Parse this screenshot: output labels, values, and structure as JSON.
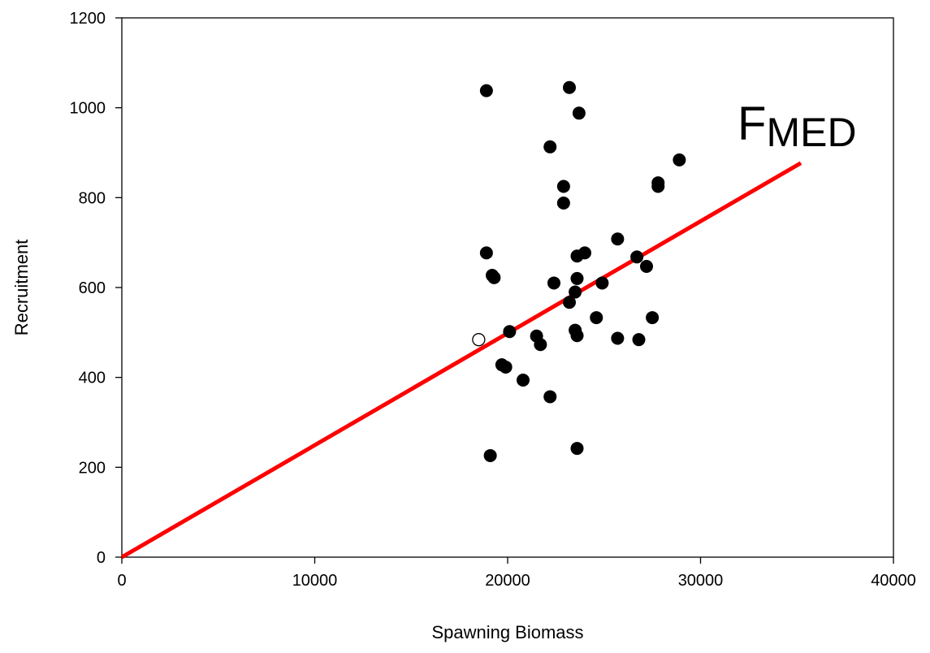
{
  "chart_data": {
    "type": "scatter",
    "xlabel": "Spawning Biomass",
    "ylabel": "Recruitment",
    "xlim": [
      0,
      40000
    ],
    "ylim": [
      0,
      1200
    ],
    "xticks": [
      0,
      10000,
      20000,
      30000,
      40000
    ],
    "yticks": [
      0,
      200,
      400,
      600,
      800,
      1000,
      1200
    ],
    "grid": false,
    "points_filled": [
      [
        18900,
        1038
      ],
      [
        23200,
        1045
      ],
      [
        23700,
        988
      ],
      [
        22200,
        913
      ],
      [
        28900,
        884
      ],
      [
        27800,
        833
      ],
      [
        27800,
        825
      ],
      [
        22900,
        825
      ],
      [
        22900,
        788
      ],
      [
        25700,
        708
      ],
      [
        18900,
        677
      ],
      [
        24000,
        677
      ],
      [
        23600,
        670
      ],
      [
        26700,
        668
      ],
      [
        27200,
        647
      ],
      [
        19200,
        627
      ],
      [
        19300,
        622
      ],
      [
        23600,
        620
      ],
      [
        22400,
        610
      ],
      [
        24900,
        610
      ],
      [
        23500,
        590
      ],
      [
        23200,
        567
      ],
      [
        24600,
        533
      ],
      [
        27500,
        533
      ],
      [
        23500,
        505
      ],
      [
        20100,
        502
      ],
      [
        21500,
        492
      ],
      [
        23600,
        493
      ],
      [
        25700,
        487
      ],
      [
        26800,
        484
      ],
      [
        21700,
        473
      ],
      [
        19700,
        428
      ],
      [
        19900,
        423
      ],
      [
        20800,
        394
      ],
      [
        22200,
        357
      ],
      [
        23600,
        242
      ],
      [
        19100,
        226
      ]
    ],
    "points_open": [
      [
        18500,
        484
      ]
    ],
    "fit_line": {
      "label_main": "F",
      "label_sub": "MED",
      "color": "#ff0000",
      "x": [
        0,
        35200
      ],
      "y": [
        0,
        877
      ]
    }
  }
}
